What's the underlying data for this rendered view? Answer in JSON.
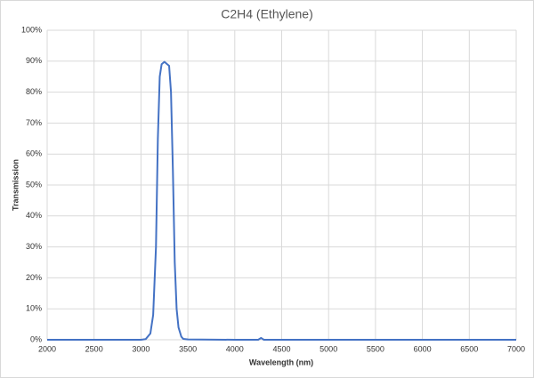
{
  "chart_data": {
    "type": "line",
    "title": "C2H4 (Ethylene)",
    "x_label": "Wavelength (nm)",
    "y_label": "Transmission",
    "x": [
      2000,
      2500,
      3000,
      3050,
      3100,
      3130,
      3160,
      3180,
      3200,
      3220,
      3250,
      3280,
      3300,
      3320,
      3340,
      3360,
      3380,
      3400,
      3430,
      3450,
      3500,
      4000,
      4250,
      4280,
      4310,
      4500,
      5000,
      5500,
      6000,
      6500,
      7000
    ],
    "series": [
      {
        "name": "C2H4 (Ethylene)",
        "color": "#4472c4",
        "values": [
          0,
          0,
          0,
          0.2,
          2,
          8,
          30,
          65,
          85,
          89,
          89.8,
          89,
          88.5,
          80,
          55,
          25,
          10,
          4,
          1,
          0.3,
          0.1,
          0,
          0,
          0.6,
          0,
          0,
          0,
          0,
          0,
          0,
          0
        ]
      }
    ],
    "xlim": [
      2000,
      7000
    ],
    "xticks": [
      2000,
      2500,
      3000,
      3500,
      4000,
      4500,
      5000,
      5500,
      6000,
      6500,
      7000
    ],
    "ylim": [
      0,
      100
    ],
    "yticks": [
      {
        "value": 0,
        "label": "0%"
      },
      {
        "value": 10,
        "label": "10%"
      },
      {
        "value": 20,
        "label": "20%"
      },
      {
        "value": 30,
        "label": "30%"
      },
      {
        "value": 40,
        "label": "40%"
      },
      {
        "value": 50,
        "label": "50%"
      },
      {
        "value": 60,
        "label": "60%"
      },
      {
        "value": 70,
        "label": "70%"
      },
      {
        "value": 80,
        "label": "80%"
      },
      {
        "value": 90,
        "label": "90%"
      },
      {
        "value": 100,
        "label": "100%"
      }
    ],
    "grid": true
  }
}
